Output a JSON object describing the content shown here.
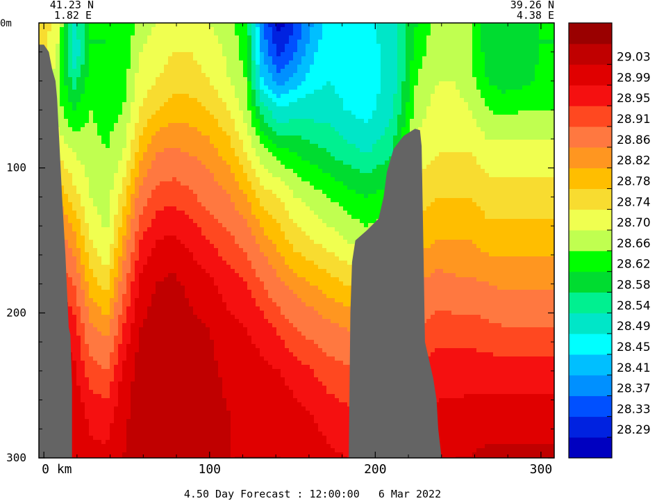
{
  "chart_data": {
    "type": "heatmap",
    "title": "",
    "caption": "4.50 Day Forecast : 12:00:00   6 Mar 2022",
    "start_point": {
      "lat": "41.23 N",
      "lon": "1.82 E"
    },
    "end_point": {
      "lat": "39.26 N",
      "lon": "4.38 E"
    },
    "xlabel": "",
    "ylabel": "",
    "x_unit": "km",
    "y_unit": "m",
    "xlim": [
      -3,
      308
    ],
    "ylim": [
      0,
      300
    ],
    "y_inverted": true,
    "x_ticks": [
      {
        "value": 0,
        "label": "0 km"
      },
      {
        "value": 100,
        "label": "100"
      },
      {
        "value": 200,
        "label": "200"
      },
      {
        "value": 300,
        "label": "300"
      }
    ],
    "y_ticks": [
      {
        "value": 0,
        "label": "0m"
      },
      {
        "value": 100,
        "label": "100"
      },
      {
        "value": 200,
        "label": "200"
      },
      {
        "value": 300,
        "label": "300"
      }
    ],
    "colorbar": {
      "position": "right",
      "levels": [
        {
          "label": "",
          "color": "#0000c0"
        },
        {
          "label": "28.29",
          "color": "#0022e0"
        },
        {
          "label": "28.33",
          "color": "#0050ff"
        },
        {
          "label": "28.37",
          "color": "#0090ff"
        },
        {
          "label": "28.41",
          "color": "#00bfff"
        },
        {
          "label": "28.45",
          "color": "#00ffff"
        },
        {
          "label": "28.49",
          "color": "#00e6c8"
        },
        {
          "label": "28.54",
          "color": "#00f090"
        },
        {
          "label": "28.58",
          "color": "#00dc30"
        },
        {
          "label": "28.62",
          "color": "#00ff00"
        },
        {
          "label": "28.66",
          "color": "#c0ff50"
        },
        {
          "label": "28.70",
          "color": "#f0ff50"
        },
        {
          "label": "28.74",
          "color": "#f8dc30"
        },
        {
          "label": "28.78",
          "color": "#ffbe00"
        },
        {
          "label": "28.82",
          "color": "#ff9620"
        },
        {
          "label": "28.86",
          "color": "#ff7840"
        },
        {
          "label": "28.91",
          "color": "#ff4820"
        },
        {
          "label": "28.95",
          "color": "#f51010"
        },
        {
          "label": "28.99",
          "color": "#e00000"
        },
        {
          "label": "29.03",
          "color": "#c00000"
        },
        {
          "label": "",
          "color": "#9a0000"
        }
      ]
    },
    "land_color": "#646464",
    "field_columns": [
      {
        "x": -3,
        "values": [
          28.78,
          28.76,
          28.74,
          28.72,
          28.78,
          28.86,
          28.91,
          28.95,
          28.99,
          29.01,
          29.02,
          29.03
        ]
      },
      {
        "x": 8,
        "values": [
          28.72,
          28.7,
          28.68,
          28.68,
          28.74,
          28.82,
          28.89,
          28.95,
          28.99,
          29.01,
          29.02,
          29.03
        ]
      },
      {
        "x": 18,
        "values": [
          28.52,
          28.5,
          28.56,
          28.62,
          28.7,
          28.76,
          28.84,
          28.91,
          28.97,
          29.0,
          29.02,
          29.03
        ]
      },
      {
        "x": 28,
        "values": [
          28.62,
          28.62,
          28.64,
          28.66,
          28.68,
          28.7,
          28.74,
          28.8,
          28.87,
          28.93,
          28.98,
          29.0
        ]
      },
      {
        "x": 38,
        "values": [
          28.62,
          28.62,
          28.63,
          28.64,
          28.66,
          28.68,
          28.7,
          28.76,
          28.84,
          28.91,
          28.97,
          29.0
        ]
      },
      {
        "x": 48,
        "values": [
          28.62,
          28.63,
          28.64,
          28.66,
          28.7,
          28.76,
          28.82,
          28.89,
          28.95,
          29.0,
          29.02,
          29.03
        ]
      },
      {
        "x": 58,
        "values": [
          28.68,
          28.7,
          28.72,
          28.74,
          28.8,
          28.88,
          28.95,
          29.0,
          29.03,
          29.05,
          29.05,
          29.06
        ]
      },
      {
        "x": 68,
        "values": [
          28.7,
          28.72,
          28.74,
          28.78,
          28.86,
          28.93,
          28.99,
          29.03,
          29.05,
          29.06,
          29.06,
          29.06
        ]
      },
      {
        "x": 78,
        "values": [
          28.72,
          28.74,
          28.76,
          28.8,
          28.87,
          28.94,
          29.0,
          29.04,
          29.06,
          29.06,
          29.06,
          29.05
        ]
      },
      {
        "x": 88,
        "values": [
          28.72,
          28.74,
          28.76,
          28.8,
          28.86,
          28.92,
          28.98,
          29.02,
          29.04,
          29.05,
          29.05,
          29.05
        ]
      },
      {
        "x": 100,
        "values": [
          28.7,
          28.72,
          28.74,
          28.78,
          28.84,
          28.89,
          28.95,
          29.0,
          29.03,
          29.04,
          29.04,
          29.04
        ]
      },
      {
        "x": 112,
        "values": [
          28.68,
          28.69,
          28.7,
          28.74,
          28.8,
          28.86,
          28.92,
          28.97,
          29.0,
          29.02,
          29.03,
          29.03
        ]
      },
      {
        "x": 122,
        "values": [
          28.62,
          28.64,
          28.66,
          28.68,
          28.74,
          28.82,
          28.89,
          28.95,
          28.99,
          29.01,
          29.02,
          29.03
        ]
      },
      {
        "x": 132,
        "values": [
          28.37,
          28.4,
          28.45,
          28.56,
          28.68,
          28.76,
          28.84,
          28.91,
          28.97,
          29.0,
          29.02,
          29.03
        ]
      },
      {
        "x": 142,
        "values": [
          28.27,
          28.32,
          28.39,
          28.5,
          28.64,
          28.74,
          28.8,
          28.87,
          28.94,
          28.99,
          29.02,
          29.03
        ]
      },
      {
        "x": 152,
        "values": [
          28.33,
          28.37,
          28.43,
          28.52,
          28.62,
          28.7,
          28.76,
          28.84,
          28.91,
          28.97,
          29.0,
          29.02
        ]
      },
      {
        "x": 162,
        "values": [
          28.41,
          28.44,
          28.47,
          28.52,
          28.6,
          28.68,
          28.74,
          28.82,
          28.89,
          28.95,
          28.99,
          29.01
        ]
      },
      {
        "x": 172,
        "values": [
          28.47,
          28.48,
          28.49,
          28.52,
          28.58,
          28.66,
          28.72,
          28.8,
          28.87,
          28.93,
          28.97,
          29.0
        ]
      },
      {
        "x": 182,
        "values": [
          28.48,
          28.47,
          28.47,
          28.49,
          28.56,
          28.64,
          28.7,
          28.78,
          28.86,
          28.92,
          28.96,
          28.99
        ]
      },
      {
        "x": 195,
        "values": [
          28.47,
          28.47,
          28.46,
          28.47,
          28.54,
          28.62,
          28.68,
          28.76,
          28.84,
          28.91,
          28.95,
          28.98
        ]
      },
      {
        "x": 210,
        "values": [
          28.52,
          28.51,
          28.51,
          28.53,
          28.58,
          28.64,
          28.7,
          28.76,
          28.84,
          28.91,
          28.95,
          28.98
        ]
      },
      {
        "x": 225,
        "values": [
          28.62,
          28.64,
          28.66,
          28.68,
          28.72,
          28.76,
          28.8,
          28.86,
          28.91,
          28.96,
          28.99,
          29.01
        ]
      },
      {
        "x": 238,
        "values": [
          28.68,
          28.69,
          28.7,
          28.72,
          28.74,
          28.78,
          28.82,
          28.88,
          28.93,
          28.97,
          29.0,
          29.02
        ]
      },
      {
        "x": 248,
        "values": [
          28.68,
          28.69,
          28.7,
          28.72,
          28.74,
          28.78,
          28.82,
          28.87,
          28.93,
          28.97,
          29.0,
          29.03
        ]
      },
      {
        "x": 258,
        "values": [
          28.66,
          28.66,
          28.67,
          28.7,
          28.74,
          28.78,
          28.82,
          28.87,
          28.93,
          28.97,
          29.01,
          29.03
        ]
      },
      {
        "x": 268,
        "values": [
          28.6,
          28.6,
          28.62,
          28.66,
          28.72,
          28.76,
          28.8,
          28.86,
          28.92,
          28.97,
          29.01,
          29.04
        ]
      },
      {
        "x": 278,
        "values": [
          28.59,
          28.59,
          28.6,
          28.65,
          28.72,
          28.76,
          28.8,
          28.85,
          28.91,
          28.97,
          29.01,
          29.04
        ]
      },
      {
        "x": 290,
        "values": [
          28.6,
          28.6,
          28.61,
          28.66,
          28.72,
          28.76,
          28.8,
          28.85,
          28.91,
          28.97,
          29.01,
          29.04
        ]
      },
      {
        "x": 300,
        "values": [
          28.62,
          28.62,
          28.63,
          28.66,
          28.72,
          28.76,
          28.8,
          28.85,
          28.91,
          28.97,
          29.01,
          29.04
        ]
      },
      {
        "x": 308,
        "values": [
          28.62,
          28.62,
          28.63,
          28.66,
          28.72,
          28.76,
          28.8,
          28.85,
          28.91,
          28.97,
          29.01,
          29.04
        ]
      }
    ],
    "field_depths": [
      0,
      20,
      40,
      60,
      90,
      120,
      150,
      180,
      210,
      240,
      270,
      300
    ],
    "land_polygons": [
      [
        [
          -3,
          15
        ],
        [
          0,
          15
        ],
        [
          3,
          20
        ],
        [
          5,
          32
        ],
        [
          7,
          40
        ],
        [
          8,
          52
        ],
        [
          11,
          120
        ],
        [
          13,
          160
        ],
        [
          15,
          210
        ],
        [
          16,
          215
        ],
        [
          17,
          250
        ],
        [
          17,
          300
        ],
        [
          -3,
          300
        ]
      ],
      [
        [
          184,
          300
        ],
        [
          185,
          200
        ],
        [
          186,
          165
        ],
        [
          188,
          150
        ],
        [
          195,
          143
        ],
        [
          202,
          135
        ],
        [
          205,
          120
        ],
        [
          207,
          103
        ],
        [
          211,
          87
        ],
        [
          217,
          78
        ],
        [
          224,
          73
        ],
        [
          227,
          74
        ],
        [
          228,
          85
        ],
        [
          229,
          150
        ],
        [
          230,
          220
        ],
        [
          235,
          245
        ],
        [
          237,
          260
        ],
        [
          238,
          280
        ],
        [
          240,
          300
        ]
      ]
    ]
  }
}
